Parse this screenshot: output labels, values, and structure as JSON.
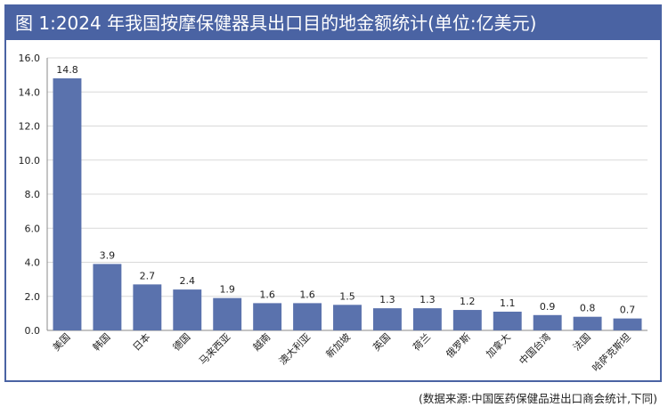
{
  "title": "图 1:2024 年我国按摩保健器具出口目的地金额统计(单位:亿美元)",
  "source": "(数据来源:中国医药保健品进出口商会统计,下同)",
  "colors": {
    "frame": "#4a63a3",
    "bar": "#5a72ad",
    "grid": "#d9d9d9",
    "axis": "#888888"
  },
  "chart_data": {
    "type": "bar",
    "title": "图 1:2024 年我国按摩保健器具出口目的地金额统计(单位:亿美元)",
    "categories": [
      "美国",
      "韩国",
      "日本",
      "德国",
      "马来西亚",
      "越南",
      "澳大利亚",
      "新加坡",
      "英国",
      "荷兰",
      "俄罗斯",
      "加拿大",
      "中国台湾",
      "法国",
      "哈萨克斯坦"
    ],
    "values": [
      14.8,
      3.9,
      2.7,
      2.4,
      1.9,
      1.6,
      1.6,
      1.5,
      1.3,
      1.3,
      1.2,
      1.1,
      0.9,
      0.8,
      0.7
    ],
    "value_labels": [
      "14.8",
      "3.9",
      "2.7",
      "2.4",
      "1.9",
      "1.6",
      "1.6",
      "1.5",
      "1.3",
      "1.3",
      "1.2",
      "1.1",
      "0.9",
      "0.8",
      "0.7"
    ],
    "y_ticks": [
      "0.0",
      "2.0",
      "4.0",
      "6.0",
      "8.0",
      "10.0",
      "12.0",
      "14.0",
      "16.0"
    ],
    "ylim": [
      0,
      16
    ],
    "grid": true,
    "xlabel": "",
    "ylabel": ""
  }
}
